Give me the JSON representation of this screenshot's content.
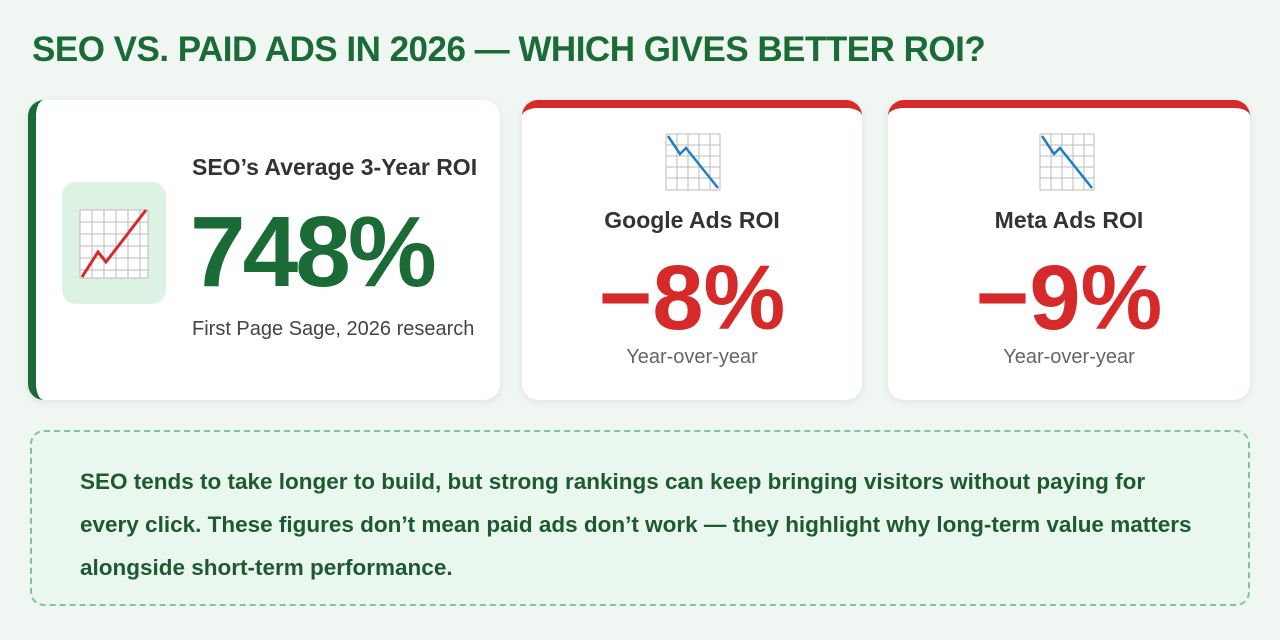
{
  "title": "SEO VS. PAID ADS IN 2026 — WHICH GIVES BETTER ROI?",
  "cards": [
    {
      "label": "SEO’s Average 3-Year ROI",
      "value": "748%",
      "note": "First Page Sage, 2026 research"
    },
    {
      "label": "Google Ads ROI",
      "value": "−8%",
      "note": "Year-over-year"
    },
    {
      "label": "Meta Ads ROI",
      "value": "−9%",
      "note": "Year-over-year"
    }
  ],
  "summary": "SEO tends to take longer to build, but strong rankings can keep bringing visitors without paying for every click. These figures don’t mean paid ads don’t work — they highlight why long-term value matters alongside short-term performance."
}
